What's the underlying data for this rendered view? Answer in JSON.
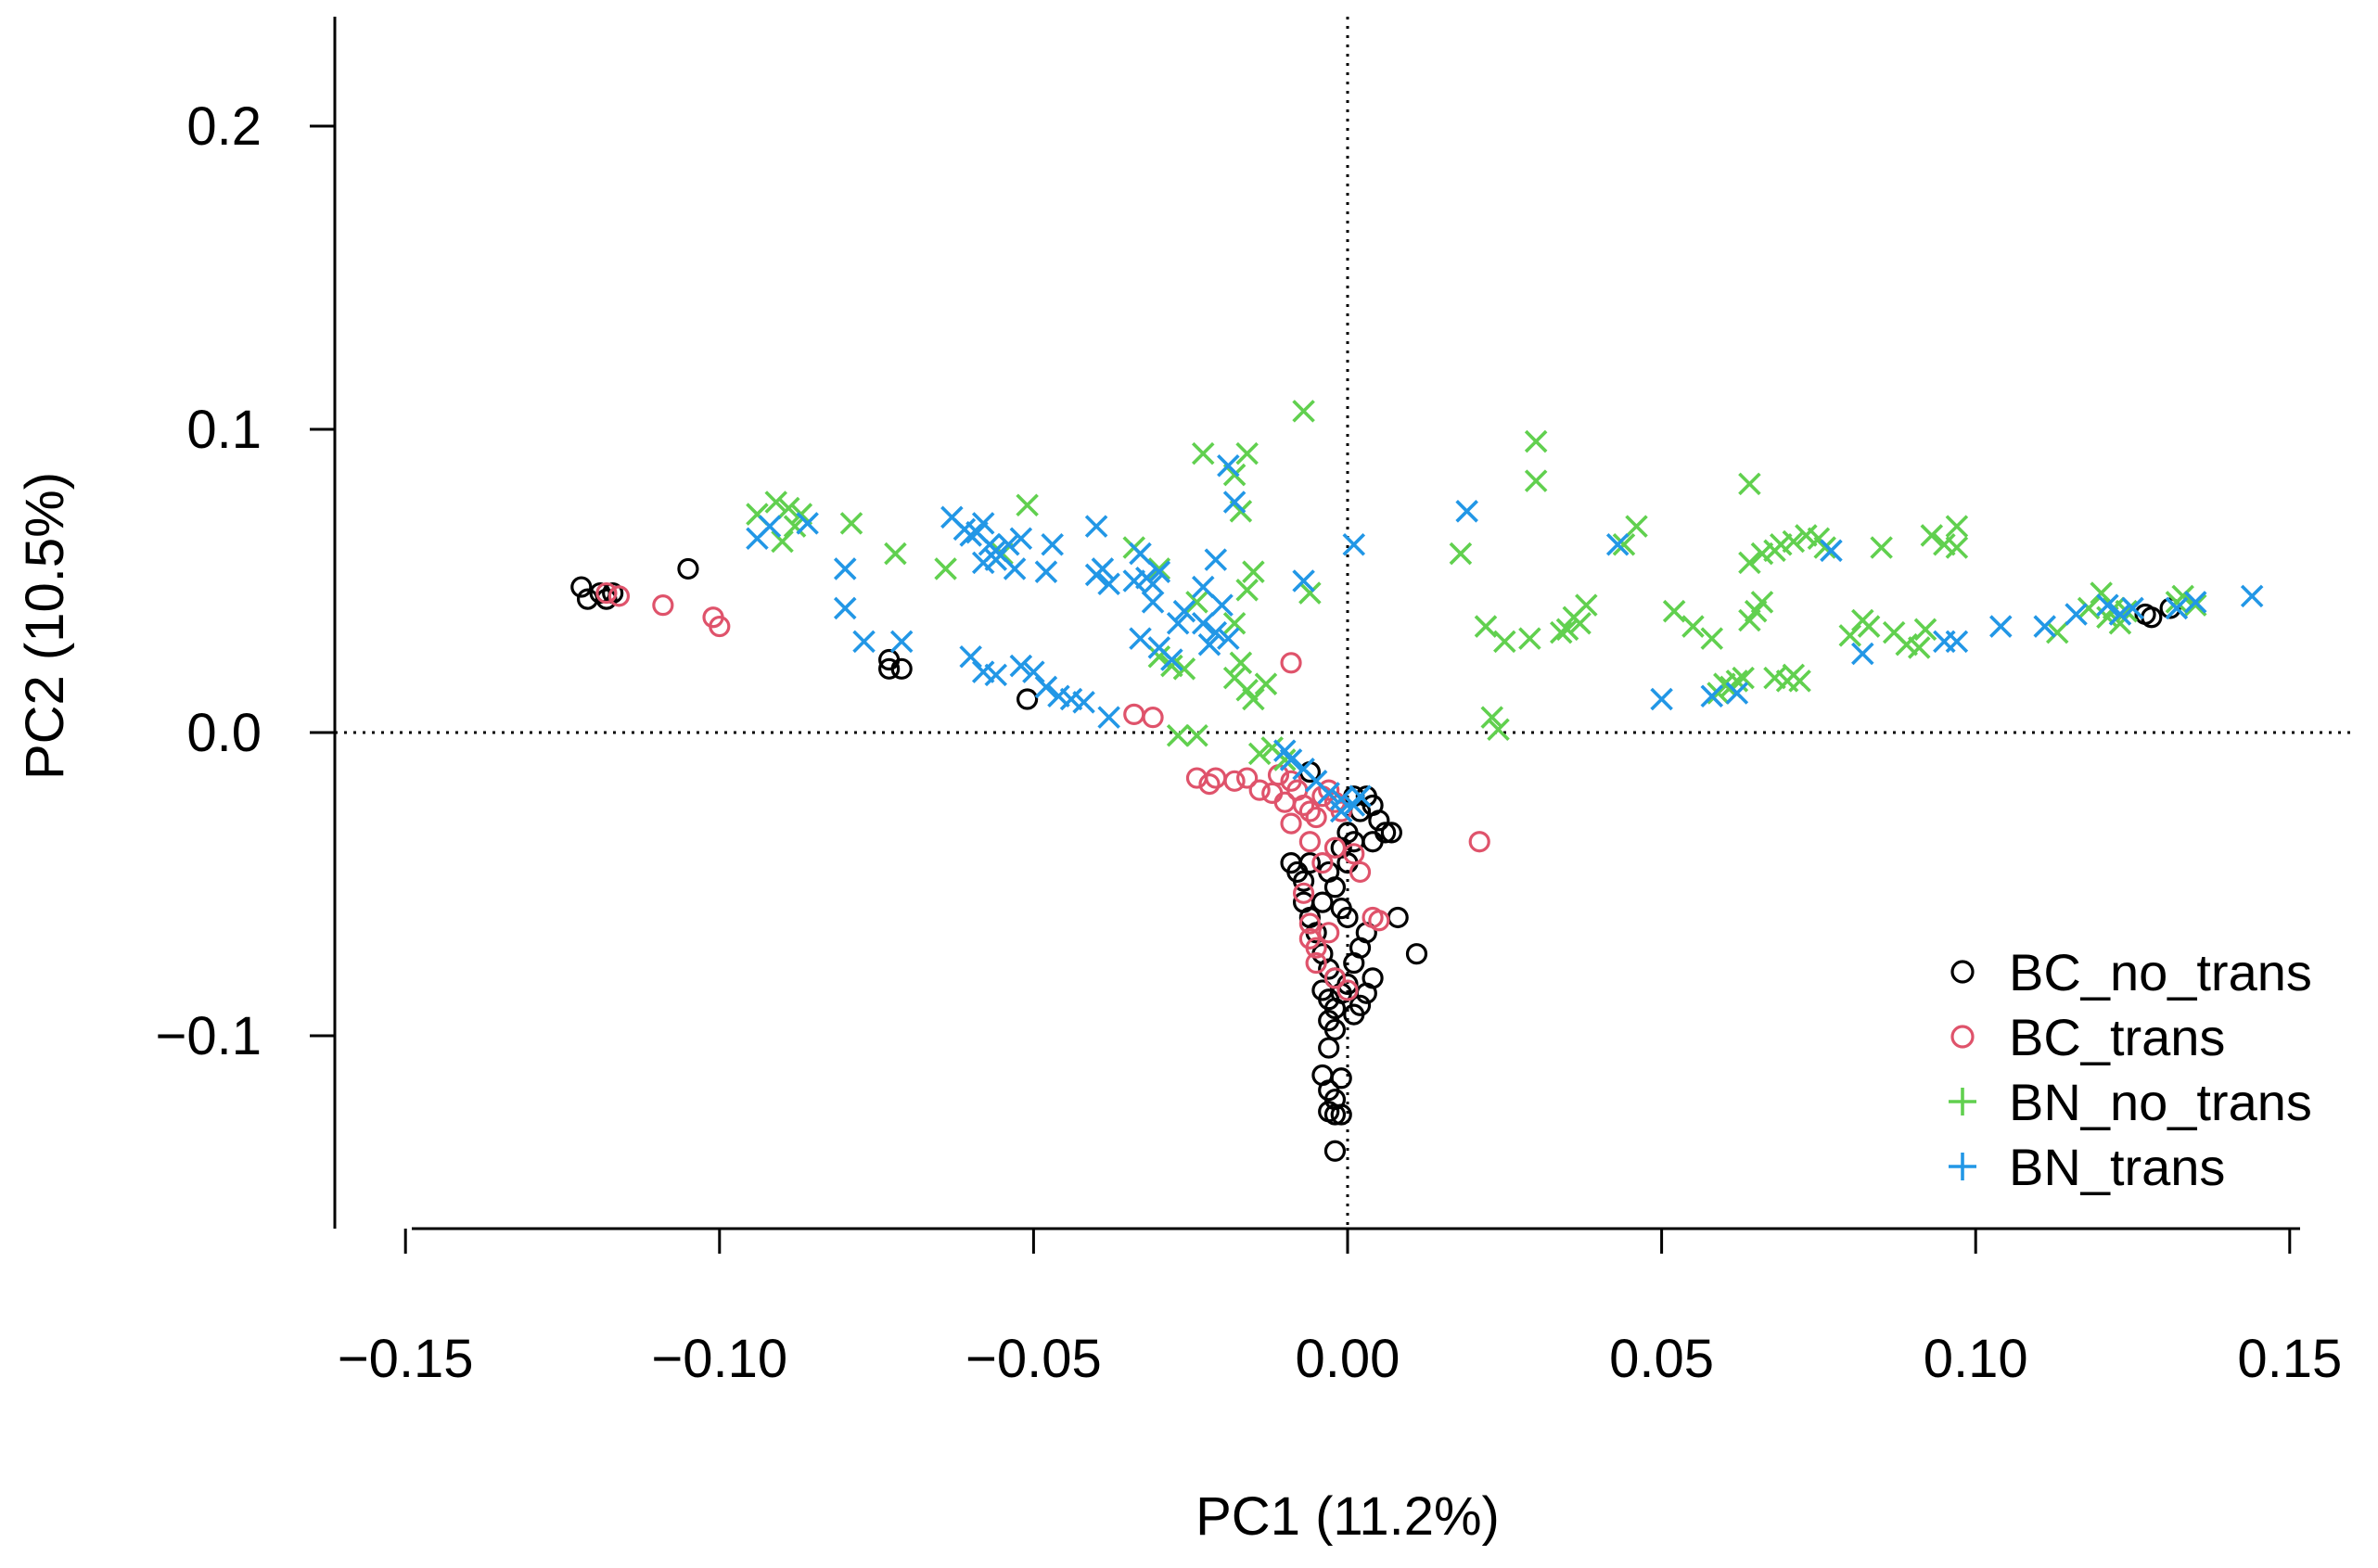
{
  "chart_data": {
    "type": "scatter",
    "title": "",
    "xlabel": "PC1 (11.2%)",
    "ylabel": "PC2 (10.5%)",
    "xlim": [
      -0.163,
      0.163
    ],
    "ylim": [
      -0.162,
      0.235
    ],
    "x_ticks": [
      -0.15,
      -0.1,
      -0.05,
      0.0,
      0.05,
      0.1,
      0.15
    ],
    "x_tick_labels": [
      "−0.15",
      "−0.10",
      "−0.05",
      "0.00",
      "0.05",
      "0.10",
      "0.15"
    ],
    "y_ticks": [
      -0.1,
      0.0,
      0.1,
      0.2
    ],
    "y_tick_labels": [
      "−0.1",
      "0.0",
      "0.1",
      "0.2"
    ],
    "reference_lines": {
      "x": 0,
      "y": 0,
      "style": "dotted"
    },
    "legend_position": "bottom-right",
    "series": [
      {
        "name": "BC_no_trans",
        "color": "#000000",
        "marker": "circle",
        "points": [
          [
            -0.122,
            0.048
          ],
          [
            -0.121,
            0.044
          ],
          [
            -0.119,
            0.046
          ],
          [
            -0.118,
            0.044
          ],
          [
            -0.117,
            0.046
          ],
          [
            -0.105,
            0.054
          ],
          [
            -0.073,
            0.024
          ],
          [
            -0.073,
            0.021
          ],
          [
            -0.071,
            0.021
          ],
          [
            -0.051,
            0.011
          ],
          [
            -0.009,
            -0.043
          ],
          [
            -0.008,
            -0.046
          ],
          [
            -0.007,
            -0.049
          ],
          [
            -0.006,
            -0.043
          ],
          [
            -0.007,
            -0.056
          ],
          [
            -0.006,
            -0.061
          ],
          [
            -0.005,
            -0.066
          ],
          [
            -0.004,
            -0.056
          ],
          [
            -0.003,
            -0.046
          ],
          [
            -0.002,
            -0.051
          ],
          [
            -0.001,
            -0.058
          ],
          [
            0.0,
            -0.061
          ],
          [
            0.0,
            -0.043
          ],
          [
            -0.001,
            -0.038
          ],
          [
            0.0,
            -0.033
          ],
          [
            0.001,
            -0.036
          ],
          [
            -0.004,
            -0.073
          ],
          [
            -0.003,
            -0.078
          ],
          [
            -0.002,
            -0.081
          ],
          [
            -0.004,
            -0.085
          ],
          [
            -0.003,
            -0.088
          ],
          [
            -0.002,
            -0.091
          ],
          [
            -0.003,
            -0.095
          ],
          [
            -0.002,
            -0.098
          ],
          [
            -0.001,
            -0.086
          ],
          [
            0.0,
            -0.083
          ],
          [
            0.001,
            -0.076
          ],
          [
            0.002,
            -0.071
          ],
          [
            0.003,
            -0.066
          ],
          [
            0.004,
            -0.081
          ],
          [
            0.003,
            -0.086
          ],
          [
            0.002,
            -0.09
          ],
          [
            0.001,
            -0.093
          ],
          [
            0.003,
            -0.021
          ],
          [
            0.004,
            -0.024
          ],
          [
            0.005,
            -0.029
          ],
          [
            0.006,
            -0.033
          ],
          [
            0.007,
            -0.033
          ],
          [
            0.004,
            -0.036
          ],
          [
            0.002,
            -0.026
          ],
          [
            0.001,
            -0.021
          ],
          [
            0.008,
            -0.061
          ],
          [
            0.011,
            -0.073
          ],
          [
            -0.003,
            -0.104
          ],
          [
            -0.004,
            -0.113
          ],
          [
            -0.003,
            -0.118
          ],
          [
            -0.002,
            -0.121
          ],
          [
            -0.003,
            -0.125
          ],
          [
            -0.002,
            -0.126
          ],
          [
            -0.001,
            -0.114
          ],
          [
            -0.001,
            -0.126
          ],
          [
            -0.002,
            -0.138
          ],
          [
            -0.006,
            -0.013
          ],
          [
            0.127,
            0.039
          ],
          [
            0.128,
            0.038
          ],
          [
            0.131,
            0.041
          ]
        ]
      },
      {
        "name": "BC_trans",
        "color": "#df536b",
        "marker": "circle",
        "points": [
          [
            -0.118,
            0.046
          ],
          [
            -0.116,
            0.045
          ],
          [
            -0.109,
            0.042
          ],
          [
            -0.101,
            0.038
          ],
          [
            -0.1,
            0.035
          ],
          [
            -0.034,
            0.006
          ],
          [
            -0.031,
            0.005
          ],
          [
            -0.024,
            -0.015
          ],
          [
            -0.022,
            -0.017
          ],
          [
            -0.021,
            -0.015
          ],
          [
            -0.018,
            -0.016
          ],
          [
            -0.016,
            -0.015
          ],
          [
            -0.014,
            -0.019
          ],
          [
            -0.012,
            -0.02
          ],
          [
            -0.011,
            -0.014
          ],
          [
            -0.01,
            -0.023
          ],
          [
            -0.009,
            -0.016
          ],
          [
            -0.008,
            -0.019
          ],
          [
            -0.007,
            -0.024
          ],
          [
            -0.006,
            -0.026
          ],
          [
            -0.005,
            -0.028
          ],
          [
            -0.004,
            -0.021
          ],
          [
            -0.003,
            -0.019
          ],
          [
            -0.002,
            -0.023
          ],
          [
            -0.001,
            -0.026
          ],
          [
            -0.009,
            0.023
          ],
          [
            -0.009,
            -0.03
          ],
          [
            -0.006,
            -0.036
          ],
          [
            -0.004,
            -0.043
          ],
          [
            -0.002,
            -0.038
          ],
          [
            0.001,
            -0.04
          ],
          [
            0.002,
            -0.046
          ],
          [
            -0.007,
            -0.053
          ],
          [
            -0.006,
            -0.063
          ],
          [
            -0.006,
            -0.068
          ],
          [
            -0.005,
            -0.071
          ],
          [
            -0.003,
            -0.066
          ],
          [
            0.004,
            -0.061
          ],
          [
            0.005,
            -0.062
          ],
          [
            -0.005,
            -0.076
          ],
          [
            -0.002,
            -0.081
          ],
          [
            0.0,
            -0.085
          ],
          [
            0.021,
            -0.036
          ]
        ]
      },
      {
        "name": "BN_no_trans",
        "color": "#61d04f",
        "marker": "cross",
        "points": [
          [
            -0.094,
            0.072
          ],
          [
            -0.091,
            0.076
          ],
          [
            -0.089,
            0.074
          ],
          [
            -0.087,
            0.072
          ],
          [
            -0.09,
            0.063
          ],
          [
            -0.088,
            0.068
          ],
          [
            -0.079,
            0.069
          ],
          [
            -0.072,
            0.059
          ],
          [
            -0.064,
            0.054
          ],
          [
            -0.051,
            0.075
          ],
          [
            -0.055,
            0.059
          ],
          [
            -0.034,
            0.061
          ],
          [
            -0.03,
            0.054
          ],
          [
            -0.03,
            0.025
          ],
          [
            -0.028,
            0.022
          ],
          [
            -0.026,
            0.021
          ],
          [
            -0.027,
            -0.001
          ],
          [
            -0.024,
            -0.001
          ],
          [
            -0.024,
            0.043
          ],
          [
            -0.023,
            0.092
          ],
          [
            -0.018,
            0.085
          ],
          [
            -0.017,
            0.073
          ],
          [
            -0.016,
            0.092
          ],
          [
            -0.015,
            0.053
          ],
          [
            -0.016,
            0.047
          ],
          [
            -0.018,
            0.036
          ],
          [
            -0.017,
            0.023
          ],
          [
            -0.018,
            0.018
          ],
          [
            -0.016,
            0.014
          ],
          [
            -0.015,
            0.011
          ],
          [
            -0.013,
            0.016
          ],
          [
            -0.014,
            -0.007
          ],
          [
            -0.012,
            -0.005
          ],
          [
            -0.01,
            -0.009
          ],
          [
            -0.007,
            0.106
          ],
          [
            -0.006,
            0.046
          ],
          [
            0.018,
            0.059
          ],
          [
            0.022,
            0.035
          ],
          [
            0.023,
            0.005
          ],
          [
            0.024,
            0.001
          ],
          [
            0.025,
            0.03
          ],
          [
            0.029,
            0.031
          ],
          [
            0.03,
            0.083
          ],
          [
            0.03,
            0.096
          ],
          [
            0.034,
            0.033
          ],
          [
            0.035,
            0.034
          ],
          [
            0.036,
            0.038
          ],
          [
            0.037,
            0.036
          ],
          [
            0.038,
            0.042
          ],
          [
            0.044,
            0.062
          ],
          [
            0.046,
            0.068
          ],
          [
            0.052,
            0.04
          ],
          [
            0.055,
            0.035
          ],
          [
            0.058,
            0.031
          ],
          [
            0.059,
            0.013
          ],
          [
            0.06,
            0.016
          ],
          [
            0.061,
            0.015
          ],
          [
            0.062,
            0.017
          ],
          [
            0.063,
            0.018
          ],
          [
            0.064,
            0.037
          ],
          [
            0.065,
            0.04
          ],
          [
            0.066,
            0.043
          ],
          [
            0.064,
            0.082
          ],
          [
            0.064,
            0.056
          ],
          [
            0.066,
            0.059
          ],
          [
            0.068,
            0.06
          ],
          [
            0.068,
            0.018
          ],
          [
            0.07,
            0.017
          ],
          [
            0.071,
            0.019
          ],
          [
            0.072,
            0.017
          ],
          [
            0.069,
            0.062
          ],
          [
            0.071,
            0.063
          ],
          [
            0.073,
            0.065
          ],
          [
            0.075,
            0.064
          ],
          [
            0.076,
            0.061
          ],
          [
            0.08,
            0.032
          ],
          [
            0.082,
            0.037
          ],
          [
            0.083,
            0.035
          ],
          [
            0.085,
            0.061
          ],
          [
            0.087,
            0.033
          ],
          [
            0.089,
            0.029
          ],
          [
            0.091,
            0.028
          ],
          [
            0.092,
            0.034
          ],
          [
            0.093,
            0.065
          ],
          [
            0.095,
            0.062
          ],
          [
            0.097,
            0.068
          ],
          [
            0.097,
            0.061
          ],
          [
            0.113,
            0.033
          ],
          [
            0.118,
            0.041
          ],
          [
            0.12,
            0.046
          ],
          [
            0.121,
            0.038
          ],
          [
            0.122,
            0.041
          ],
          [
            0.123,
            0.036
          ],
          [
            0.124,
            0.04
          ],
          [
            0.132,
            0.043
          ],
          [
            0.133,
            0.045
          ],
          [
            0.135,
            0.042
          ]
        ]
      },
      {
        "name": "BN_trans",
        "color": "#2297e6",
        "marker": "cross",
        "points": [
          [
            -0.094,
            0.064
          ],
          [
            -0.092,
            0.068
          ],
          [
            -0.086,
            0.069
          ],
          [
            -0.08,
            0.054
          ],
          [
            -0.08,
            0.041
          ],
          [
            -0.077,
            0.03
          ],
          [
            -0.071,
            0.03
          ],
          [
            -0.063,
            0.071
          ],
          [
            -0.061,
            0.067
          ],
          [
            -0.06,
            0.065
          ],
          [
            -0.059,
            0.066
          ],
          [
            -0.058,
            0.069
          ],
          [
            -0.057,
            0.062
          ],
          [
            -0.056,
            0.06
          ],
          [
            -0.058,
            0.056
          ],
          [
            -0.056,
            0.057
          ],
          [
            -0.054,
            0.062
          ],
          [
            -0.053,
            0.054
          ],
          [
            -0.052,
            0.064
          ],
          [
            -0.048,
            0.053
          ],
          [
            -0.047,
            0.062
          ],
          [
            -0.04,
            0.052
          ],
          [
            -0.038,
            0.049
          ],
          [
            -0.039,
            0.054
          ],
          [
            -0.04,
            0.068
          ],
          [
            -0.034,
            0.05
          ],
          [
            -0.033,
            0.059
          ],
          [
            -0.032,
            0.051
          ],
          [
            -0.031,
            0.049
          ],
          [
            -0.03,
            0.053
          ],
          [
            -0.031,
            0.043
          ],
          [
            -0.033,
            0.031
          ],
          [
            -0.03,
            0.028
          ],
          [
            -0.028,
            0.024
          ],
          [
            -0.027,
            0.036
          ],
          [
            -0.026,
            0.04
          ],
          [
            -0.023,
            0.036
          ],
          [
            -0.022,
            0.029
          ],
          [
            -0.021,
            0.033
          ],
          [
            -0.02,
            0.042
          ],
          [
            -0.019,
            0.031
          ],
          [
            -0.023,
            0.048
          ],
          [
            -0.021,
            0.057
          ],
          [
            -0.019,
            0.088
          ],
          [
            -0.018,
            0.076
          ],
          [
            -0.06,
            0.025
          ],
          [
            -0.058,
            0.02
          ],
          [
            -0.056,
            0.019
          ],
          [
            -0.052,
            0.022
          ],
          [
            -0.05,
            0.02
          ],
          [
            -0.048,
            0.015
          ],
          [
            -0.046,
            0.012
          ],
          [
            -0.044,
            0.011
          ],
          [
            -0.042,
            0.01
          ],
          [
            -0.038,
            0.005
          ],
          [
            -0.007,
            0.05
          ],
          [
            0.001,
            0.062
          ],
          [
            -0.01,
            -0.006
          ],
          [
            -0.009,
            -0.009
          ],
          [
            -0.007,
            -0.012
          ],
          [
            -0.005,
            -0.016
          ],
          [
            -0.003,
            -0.02
          ],
          [
            -0.001,
            -0.022
          ],
          [
            0.001,
            -0.024
          ],
          [
            0.002,
            -0.021
          ],
          [
            -0.001,
            -0.026
          ],
          [
            0.019,
            0.073
          ],
          [
            0.043,
            0.062
          ],
          [
            0.05,
            0.011
          ],
          [
            0.058,
            0.012
          ],
          [
            0.062,
            0.013
          ],
          [
            0.077,
            0.06
          ],
          [
            0.082,
            0.026
          ],
          [
            0.095,
            0.03
          ],
          [
            0.097,
            0.03
          ],
          [
            0.104,
            0.035
          ],
          [
            0.111,
            0.035
          ],
          [
            0.116,
            0.039
          ],
          [
            0.121,
            0.042
          ],
          [
            0.123,
            0.039
          ],
          [
            0.125,
            0.041
          ],
          [
            0.132,
            0.041
          ],
          [
            0.135,
            0.043
          ],
          [
            0.144,
            0.045
          ]
        ]
      }
    ]
  }
}
